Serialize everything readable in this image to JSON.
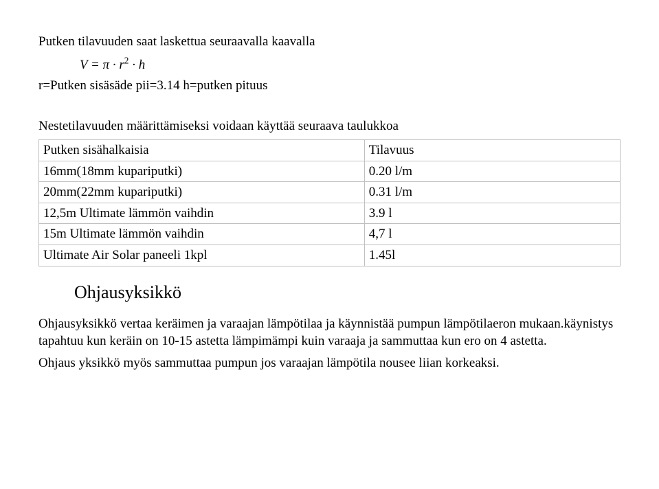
{
  "intro": {
    "line1": "Putken tilavuuden saat laskettua seuraavalla kaavalla",
    "formula_plain": "V = π · r² · h",
    "line2": "r=Putken sisäsäde   pii=3.14   h=putken pituus"
  },
  "table": {
    "lead": "Nestetilavuuden määrittämiseksi voidaan käyttää seuraava taulukkoa",
    "rows": [
      {
        "c1": "Putken sisähalkaisia",
        "c2": "Tilavuus"
      },
      {
        "c1": "16mm(18mm kupariputki)",
        "c2": "0.20 l/m"
      },
      {
        "c1": "20mm(22mm kupariputki)",
        "c2": "0.31 l/m"
      },
      {
        "c1": "12,5m Ultimate lämmön vaihdin",
        "c2": "3.9 l"
      },
      {
        "c1": "15m Ultimate lämmön vaihdin",
        "c2": "4,7 l"
      },
      {
        "c1": "Ultimate Air Solar paneeli 1kpl",
        "c2": "1.45l"
      }
    ]
  },
  "section": {
    "heading": "Ohjausyksikkö",
    "p1": "Ohjausyksikkö vertaa keräimen ja varaajan lämpötilaa ja käynnistää pumpun lämpötilaeron mukaan.käynistys tapahtuu kun keräin on 10-15 astetta lämpimämpi kuin varaaja ja sammuttaa kun ero on 4 astetta.",
    "p2": "Ohjaus yksikkö myös sammuttaa pumpun jos varaajan lämpötila nousee liian korkeaksi."
  },
  "colors": {
    "text": "#000000",
    "background": "#ffffff",
    "table_border": "#c0c0c0"
  },
  "typography": {
    "body_font": "Times New Roman",
    "body_size_pt": 14,
    "heading_size_pt": 20
  }
}
